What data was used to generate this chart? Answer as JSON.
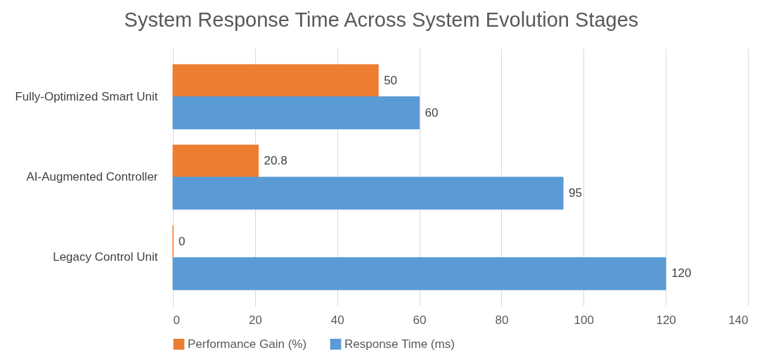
{
  "chart_data": {
    "type": "bar",
    "orientation": "horizontal",
    "title": "System Response Time Across System Evolution Stages",
    "categories": [
      "Fully-Optimized Smart Unit",
      "AI-Augmented Controller",
      "Legacy Control Unit"
    ],
    "series": [
      {
        "name": "Performance Gain (%)",
        "color": "#ed7d31",
        "values": [
          50,
          20.8,
          0
        ]
      },
      {
        "name": "Response Time (ms)",
        "color": "#5b9bd5",
        "values": [
          60,
          95,
          120
        ]
      }
    ],
    "xlim": [
      0,
      140
    ],
    "xticks": [
      0,
      20,
      40,
      60,
      80,
      100,
      120,
      140
    ],
    "grid": "x",
    "legend": "bottom",
    "data_labels": true
  }
}
